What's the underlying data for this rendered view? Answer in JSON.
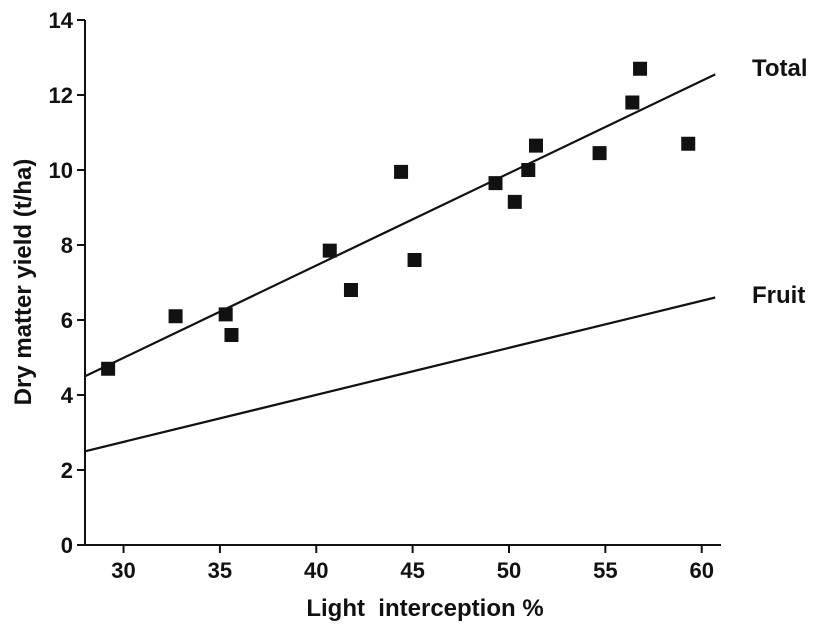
{
  "chart_data": {
    "type": "scatter",
    "title": "",
    "xlabel": "Light  interception %",
    "ylabel": "Dry matter yield (t/ha)",
    "xlim": [
      28,
      61
    ],
    "ylim": [
      0,
      14
    ],
    "xticks": [
      30,
      35,
      40,
      45,
      50,
      55,
      60
    ],
    "yticks": [
      0,
      2,
      4,
      6,
      8,
      10,
      12,
      14
    ],
    "xtick_labels": [
      "30",
      "35",
      "40",
      "45",
      "50",
      "55",
      "60"
    ],
    "ytick_labels": [
      "0",
      "2",
      "4",
      "6",
      "8",
      "10",
      "12",
      "14"
    ],
    "grid": false,
    "marker_color": "#111111",
    "points": [
      {
        "x": 29.2,
        "y": 4.7
      },
      {
        "x": 32.7,
        "y": 6.1
      },
      {
        "x": 35.3,
        "y": 6.15
      },
      {
        "x": 35.6,
        "y": 5.6
      },
      {
        "x": 40.7,
        "y": 7.85
      },
      {
        "x": 41.8,
        "y": 6.8
      },
      {
        "x": 44.4,
        "y": 9.95
      },
      {
        "x": 45.1,
        "y": 7.6
      },
      {
        "x": 49.3,
        "y": 9.65
      },
      {
        "x": 50.3,
        "y": 9.15
      },
      {
        "x": 51.0,
        "y": 10.0
      },
      {
        "x": 51.4,
        "y": 10.65
      },
      {
        "x": 54.7,
        "y": 10.45
      },
      {
        "x": 56.4,
        "y": 11.8
      },
      {
        "x": 56.8,
        "y": 12.7
      },
      {
        "x": 59.3,
        "y": 10.7
      }
    ],
    "series": [
      {
        "name": "Total",
        "x": [
          28,
          60.7
        ],
        "y": [
          4.5,
          12.55
        ]
      },
      {
        "name": "Fruit",
        "x": [
          28,
          60.7
        ],
        "y": [
          2.5,
          6.6
        ]
      }
    ]
  }
}
